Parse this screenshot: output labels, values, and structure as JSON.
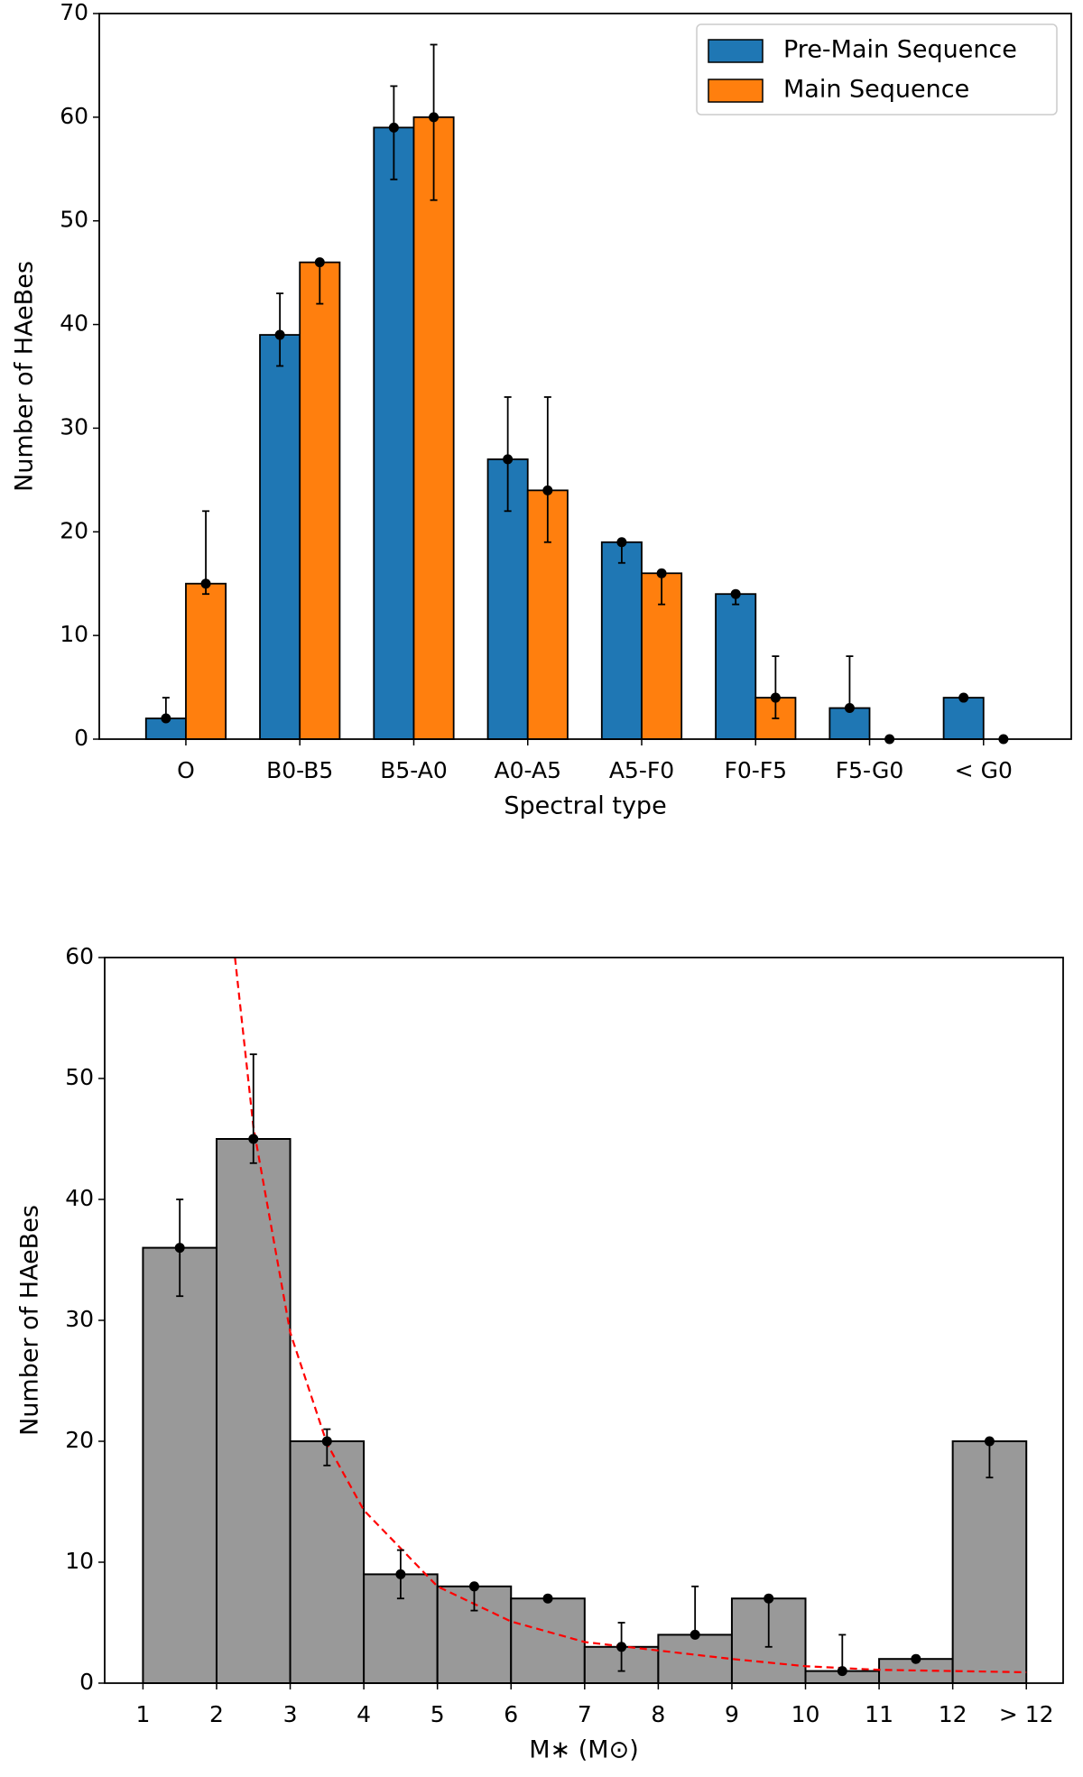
{
  "chart_data": [
    {
      "type": "bar",
      "categories": [
        "O",
        "B0-B5",
        "B5-A0",
        "A0-A5",
        "A5-F0",
        "F0-F5",
        "F5-G0",
        "< G0"
      ],
      "series": [
        {
          "name": "Pre-Main Sequence",
          "color": "#1f77b4",
          "values": [
            2,
            39,
            59,
            27,
            19,
            14,
            3,
            4
          ],
          "errors": [
            [
              0,
              2
            ],
            [
              3,
              4
            ],
            [
              5,
              4
            ],
            [
              5,
              6
            ],
            [
              2,
              0
            ],
            [
              1,
              0
            ],
            [
              0,
              5
            ],
            [
              0,
              0
            ]
          ]
        },
        {
          "name": "Main Sequence",
          "color": "#ff7f0e",
          "values": [
            15,
            46,
            60,
            24,
            16,
            4,
            0,
            0
          ],
          "errors": [
            [
              1,
              7
            ],
            [
              4,
              0
            ],
            [
              8,
              7
            ],
            [
              5,
              9
            ],
            [
              3,
              0
            ],
            [
              2,
              4
            ],
            [
              0,
              0
            ],
            [
              0,
              0
            ]
          ]
        }
      ],
      "xlabel": "Spectral type",
      "ylabel": "Number of HAeBes",
      "ylim": [
        0,
        70
      ],
      "yticks": [
        0,
        10,
        20,
        30,
        40,
        50,
        60,
        70
      ],
      "legend": "upper right"
    },
    {
      "type": "histogram",
      "bins": [
        1,
        2,
        3,
        4,
        5,
        6,
        7,
        8,
        9,
        10,
        11,
        12,
        13
      ],
      "values": [
        36,
        45,
        20,
        9,
        8,
        7,
        3,
        4,
        7,
        1,
        2,
        20
      ],
      "errors": [
        [
          4,
          4
        ],
        [
          2,
          7
        ],
        [
          2,
          1
        ],
        [
          2,
          2
        ],
        [
          2,
          0
        ],
        [
          0,
          0
        ],
        [
          2,
          2
        ],
        [
          0,
          4
        ],
        [
          4,
          0
        ],
        [
          0,
          3
        ],
        [
          0,
          0
        ],
        [
          3,
          0
        ]
      ],
      "color": "#999999",
      "curve": {
        "color": "#ff0000",
        "style": "dashed",
        "x": [
          2.25,
          2.5,
          3,
          3.5,
          4,
          5,
          6,
          7,
          8,
          9,
          10,
          11,
          12,
          13
        ],
        "values": [
          60,
          46,
          29,
          19.8,
          14.3,
          8,
          5.1,
          3.4,
          2.7,
          2,
          1.4,
          1.1,
          1,
          0.9
        ]
      },
      "xlabel": "M∗ (M⊙)",
      "ylabel": "Number of HAeBes",
      "xlim": [
        0.48,
        13.5
      ],
      "xticks": [
        1,
        2,
        3,
        4,
        5,
        6,
        7,
        8,
        9,
        10,
        11,
        12,
        {
          "value": 13,
          "label": "> 12"
        }
      ],
      "ylim": [
        0,
        60
      ],
      "yticks": [
        0,
        10,
        20,
        30,
        40,
        50,
        60
      ]
    }
  ]
}
